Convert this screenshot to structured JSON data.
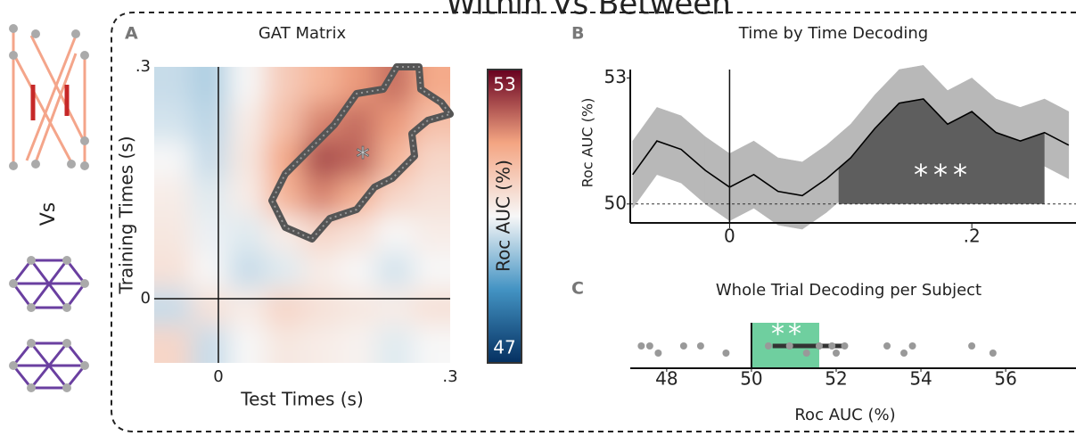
{
  "title": "Within Vs Between",
  "chart_data": [
    {
      "type": "heatmap",
      "panel": "A",
      "title": "GAT Matrix",
      "xlabel": "Test Times (s)",
      "ylabel": "Training Times (s)",
      "xlim": [
        -0.083,
        0.3
      ],
      "ylim": [
        -0.083,
        0.3
      ],
      "xticks": [
        0,
        {
          "value": 0.3,
          "label": ".3"
        }
      ],
      "yticks": [
        0,
        {
          "value": 0.3,
          "label": ".3"
        }
      ],
      "matrix": [
        [
          49.6,
          49.4,
          50.0,
          50.8,
          51.2,
          51.6,
          52.0,
          51.4
        ],
        [
          49.7,
          49.5,
          50.2,
          51.0,
          51.8,
          52.0,
          51.6,
          51.0
        ],
        [
          50.0,
          49.6,
          50.3,
          51.4,
          52.3,
          52.1,
          51.2,
          50.6
        ],
        [
          50.2,
          49.8,
          50.2,
          51.2,
          51.8,
          51.3,
          50.6,
          50.4
        ],
        [
          50.3,
          49.9,
          49.8,
          50.2,
          50.6,
          50.4,
          50.0,
          50.2
        ],
        [
          50.4,
          50.0,
          49.6,
          49.8,
          50.2,
          50.0,
          49.7,
          50.0
        ],
        [
          49.6,
          50.4,
          50.2,
          50.6,
          50.4,
          50.3,
          50.2,
          50.4
        ],
        [
          50.6,
          49.6,
          50.0,
          50.3,
          50.2,
          50.1,
          49.8,
          50.0
        ]
      ],
      "clim": [
        47,
        53
      ],
      "colorbar_label": "Roc AUC (%)",
      "annotation": "*"
    },
    {
      "type": "line",
      "panel": "B",
      "title": "Time by Time Decoding",
      "ylabel": "Roc AUC (%)",
      "xlim": [
        -0.082,
        0.286
      ],
      "ylim": [
        49.55,
        53.2
      ],
      "xticks": [
        0,
        {
          "value": 0.2,
          "label": ".2"
        }
      ],
      "yticks": [
        50,
        53
      ],
      "chance": 50,
      "x": [
        -0.08,
        -0.06,
        -0.04,
        -0.02,
        0,
        0.02,
        0.04,
        0.06,
        0.08,
        0.1,
        0.12,
        0.14,
        0.16,
        0.18,
        0.2,
        0.22,
        0.24,
        0.26,
        0.28
      ],
      "series": [
        {
          "name": "mean",
          "color": "#000000",
          "values": [
            50.7,
            51.5,
            51.3,
            50.8,
            50.4,
            50.7,
            50.3,
            50.2,
            50.6,
            51.1,
            51.8,
            52.4,
            52.5,
            51.9,
            52.2,
            51.7,
            51.5,
            51.7,
            51.4
          ]
        },
        {
          "name": "upper",
          "color": "#b8b8b8",
          "values": [
            51.5,
            52.3,
            52.1,
            51.6,
            51.2,
            51.5,
            51.1,
            51.0,
            51.4,
            51.9,
            52.6,
            53.2,
            53.3,
            52.7,
            53.0,
            52.5,
            52.3,
            52.5,
            52.2
          ]
        },
        {
          "name": "lower",
          "color": "#b8b8b8",
          "values": [
            49.9,
            50.7,
            50.5,
            50.0,
            49.6,
            49.9,
            49.5,
            49.4,
            49.8,
            50.3,
            51.0,
            51.6,
            51.7,
            51.1,
            51.4,
            50.9,
            50.7,
            50.9,
            50.6
          ]
        }
      ],
      "sig_range": [
        0.09,
        0.26
      ],
      "sig_color": "#5e5e5e",
      "annotation": "***"
    },
    {
      "type": "dot",
      "panel": "C",
      "title": "Whole Trial Decoding per Subject",
      "xlabel": "Roc AUC (%)",
      "xlim": [
        47.14,
        57.66
      ],
      "xticks": [
        48,
        50,
        52,
        54,
        56
      ],
      "values": [
        47.4,
        47.6,
        47.8,
        48.4,
        48.8,
        49.4,
        50.4,
        50.9,
        51.3,
        51.6,
        51.9,
        52.0,
        52.2,
        53.2,
        53.6,
        53.8,
        55.2,
        55.7
      ],
      "box": [
        50,
        51.6
      ],
      "box_color": "#6fcf9f",
      "ci": [
        50.5,
        52.2
      ],
      "annotation": "**"
    }
  ]
}
